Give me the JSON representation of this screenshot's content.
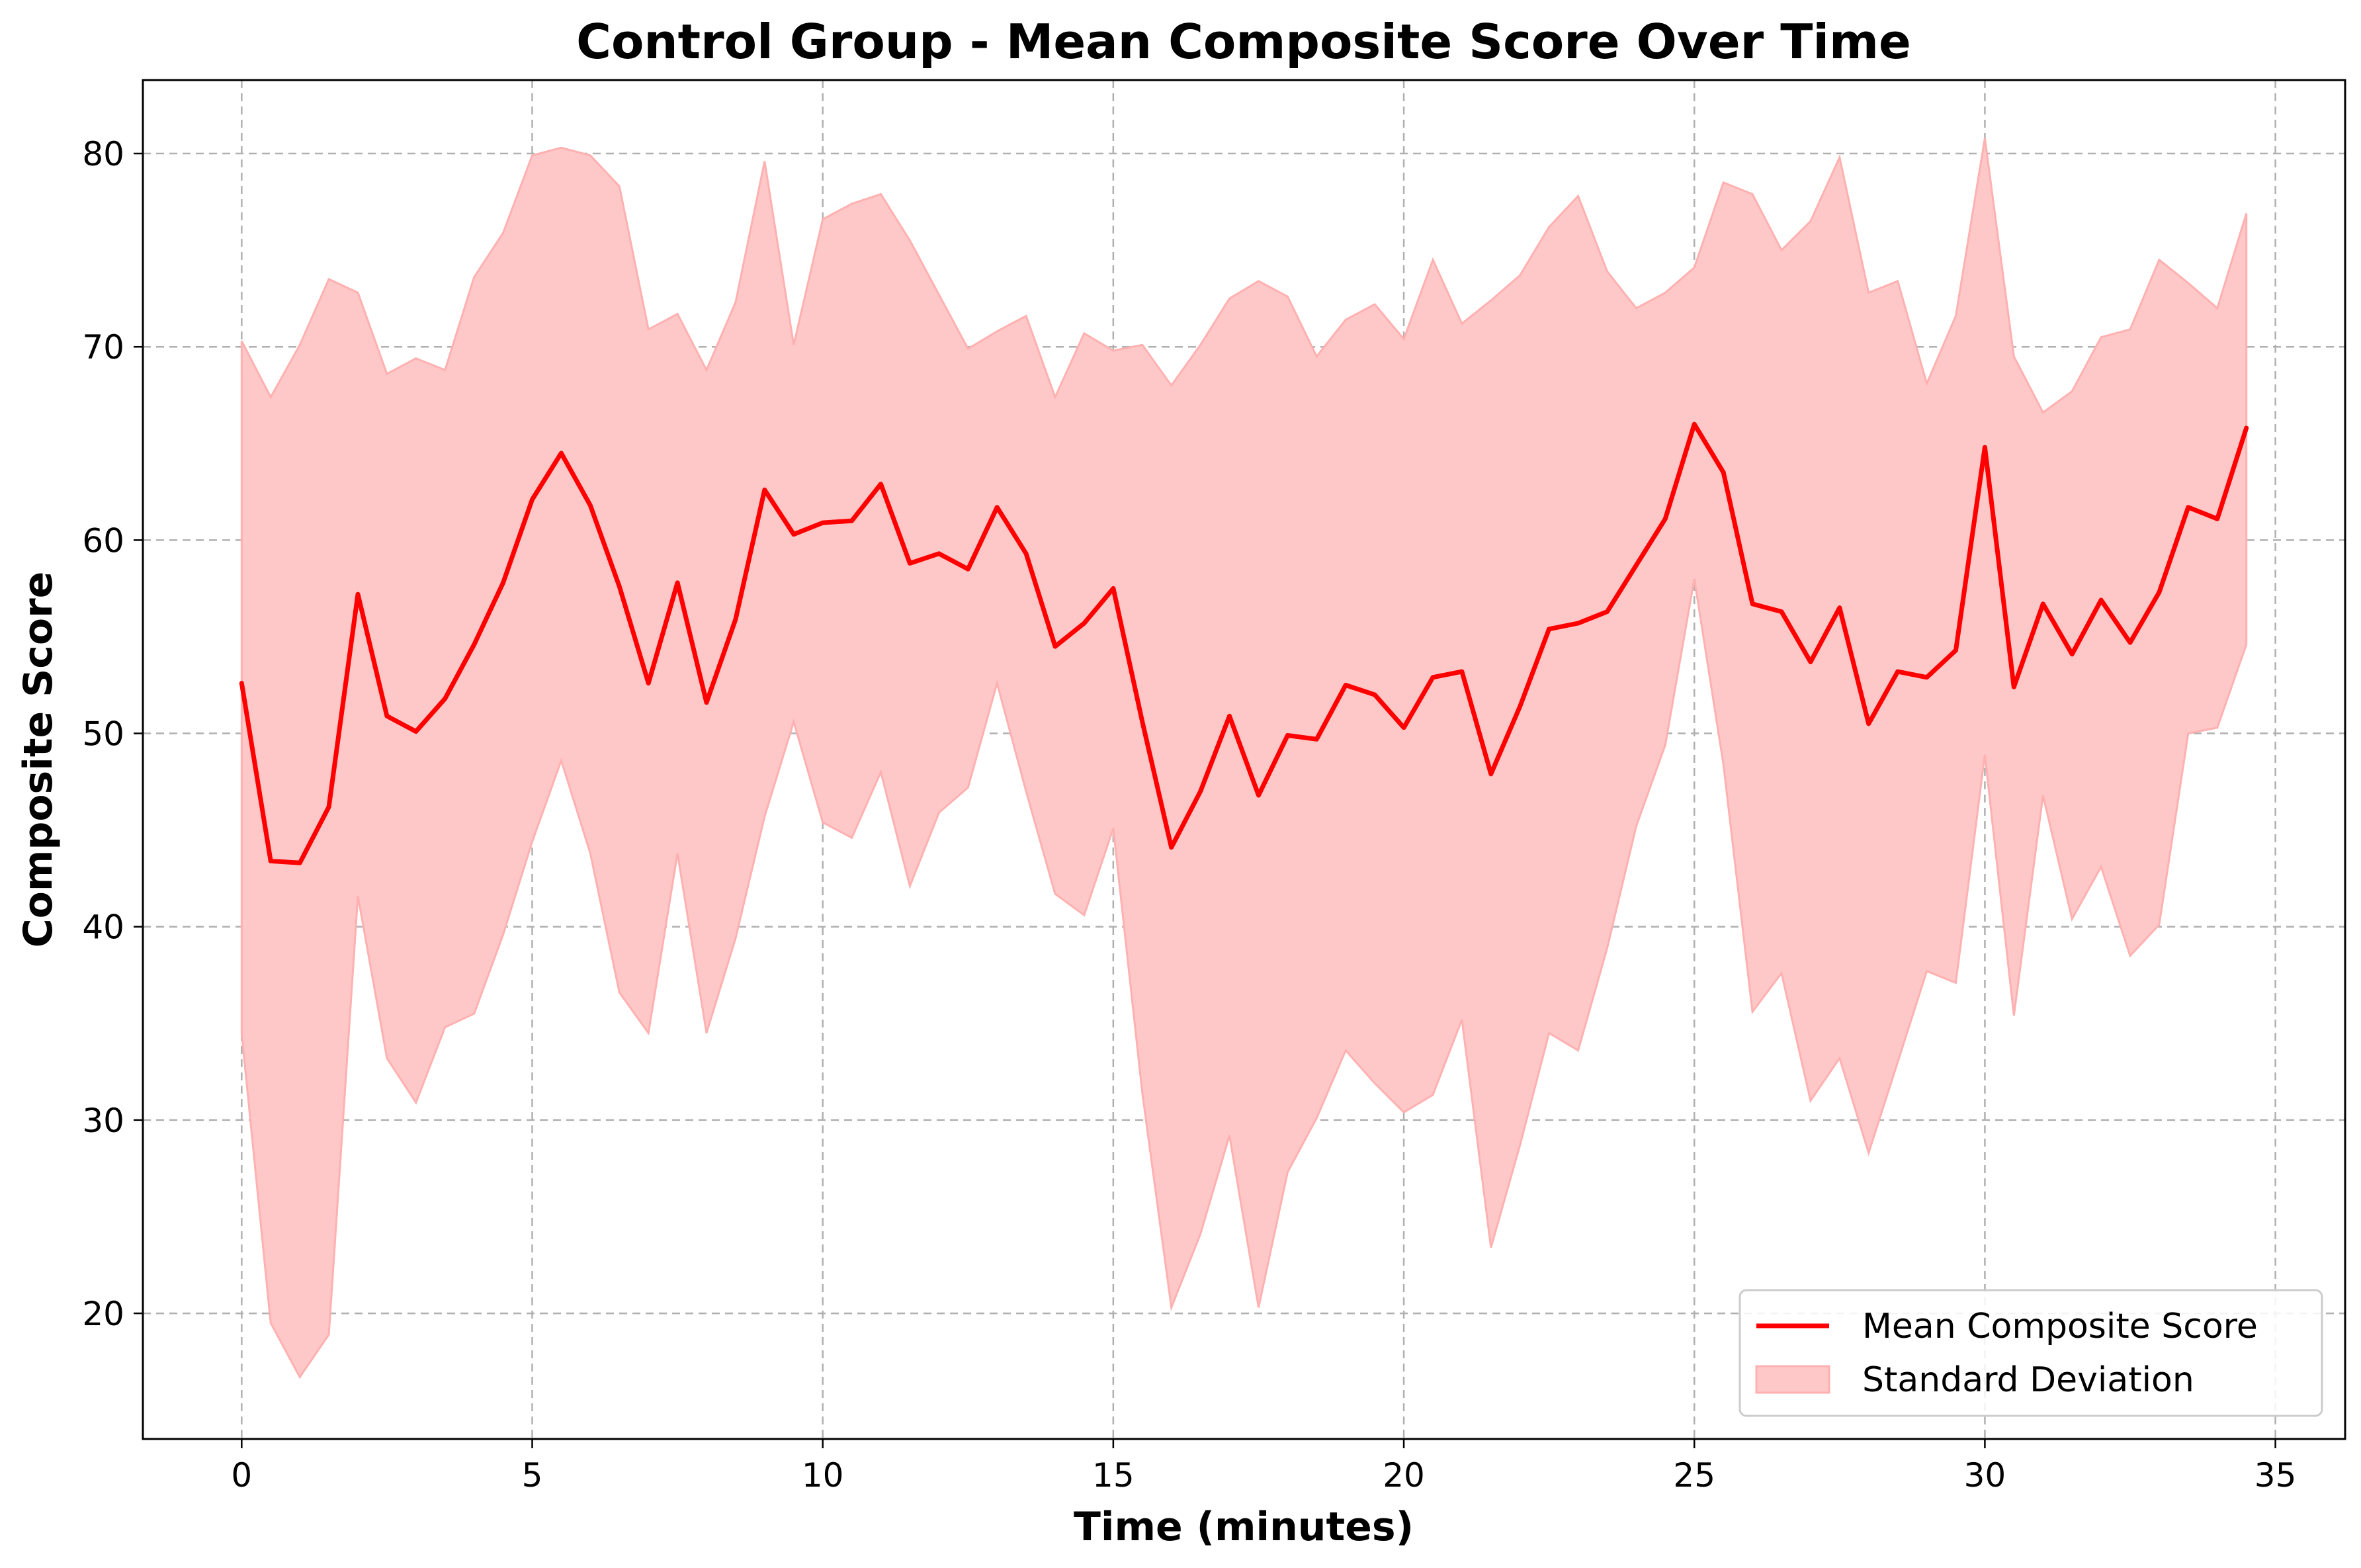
{
  "chart_data": {
    "type": "line",
    "title": "Control Group - Mean Composite Score Over Time",
    "xlabel": "Time (minutes)",
    "ylabel": "Composite Score",
    "xlim": [
      -1.7,
      36.2
    ],
    "ylim": [
      13.5,
      83.8
    ],
    "xticks": [
      0,
      5,
      10,
      15,
      20,
      25,
      30,
      35
    ],
    "yticks": [
      20,
      30,
      40,
      50,
      60,
      70,
      80
    ],
    "grid": true,
    "legend_position": "lower-right",
    "colors": {
      "mean_line": "#ff0000",
      "band_fill": "#ffc8c8",
      "band_edge": "#ffb0b0"
    },
    "x": [
      0,
      0.5,
      1,
      1.5,
      2,
      2.5,
      3,
      3.5,
      4,
      4.5,
      5,
      5.5,
      6,
      6.5,
      7,
      7.5,
      8,
      8.5,
      9,
      9.5,
      10,
      10.5,
      11,
      11.5,
      12,
      12.5,
      13,
      13.5,
      14,
      14.5,
      15,
      15.5,
      16,
      16.5,
      17,
      17.5,
      18,
      18.5,
      19,
      19.5,
      20,
      20.5,
      21,
      21.5,
      22,
      22.5,
      23,
      23.5,
      24,
      24.5,
      25,
      25.5,
      26,
      26.5,
      27,
      27.5,
      28,
      28.5,
      29,
      29.5,
      30,
      30.5,
      31,
      31.5,
      32,
      32.5,
      33,
      33.5,
      34,
      34.5
    ],
    "series": [
      {
        "name": "Mean Composite Score",
        "values": [
          52.6,
          43.4,
          43.3,
          46.2,
          57.2,
          50.9,
          50.1,
          51.8,
          54.6,
          57.8,
          62.1,
          64.5,
          61.8,
          57.6,
          52.6,
          57.8,
          51.6,
          55.9,
          62.6,
          60.3,
          60.9,
          61.0,
          62.9,
          58.8,
          59.3,
          58.5,
          61.7,
          59.3,
          54.5,
          55.7,
          57.5,
          50.6,
          44.1,
          47.0,
          50.9,
          46.8,
          49.9,
          49.7,
          52.5,
          52.0,
          50.3,
          52.9,
          53.2,
          47.9,
          51.4,
          55.4,
          55.7,
          56.3,
          58.7,
          61.1,
          66.0,
          63.5,
          56.7,
          56.3,
          53.7,
          56.5,
          50.5,
          53.2,
          52.9,
          54.3,
          64.8,
          52.4,
          56.7,
          54.1,
          56.9,
          54.7,
          57.3,
          61.7,
          61.1,
          65.8
        ]
      },
      {
        "name": "Standard Deviation",
        "lower": [
          34.5,
          19.5,
          16.7,
          18.9,
          41.6,
          33.2,
          30.9,
          34.8,
          35.5,
          39.6,
          44.4,
          48.6,
          43.8,
          36.6,
          34.5,
          43.8,
          34.5,
          39.4,
          45.7,
          50.6,
          45.4,
          44.6,
          48.0,
          42.1,
          45.9,
          47.2,
          52.6,
          47.0,
          41.7,
          40.6,
          45.1,
          31.4,
          20.3,
          24.1,
          29.2,
          20.3,
          27.3,
          30.1,
          33.6,
          31.9,
          30.4,
          31.3,
          35.2,
          23.4,
          28.7,
          34.5,
          33.6,
          38.9,
          45.2,
          49.4,
          58.0,
          48.4,
          35.6,
          37.6,
          31.0,
          33.2,
          28.3,
          33.0,
          37.7,
          37.1,
          48.9,
          35.4,
          46.8,
          40.4,
          43.1,
          38.5,
          40.1,
          50.0,
          50.3,
          54.6
        ],
        "upper": [
          70.3,
          67.4,
          70.1,
          73.5,
          72.8,
          68.6,
          69.4,
          68.8,
          73.6,
          75.9,
          79.9,
          80.3,
          79.9,
          78.3,
          70.9,
          71.7,
          68.8,
          72.3,
          79.6,
          70.1,
          76.6,
          77.4,
          77.9,
          75.5,
          72.7,
          69.9,
          70.8,
          71.6,
          67.4,
          70.7,
          69.8,
          70.1,
          68.0,
          70.1,
          72.5,
          73.4,
          72.6,
          69.5,
          71.4,
          72.2,
          70.4,
          74.5,
          71.2,
          72.4,
          73.7,
          76.2,
          77.8,
          73.9,
          72.0,
          72.8,
          74.1,
          78.5,
          77.9,
          75.0,
          76.5,
          79.8,
          72.8,
          73.4,
          68.1,
          71.6,
          80.8,
          69.5,
          66.6,
          67.7,
          70.5,
          70.9,
          74.5,
          73.3,
          72.0,
          76.9
        ]
      }
    ]
  }
}
